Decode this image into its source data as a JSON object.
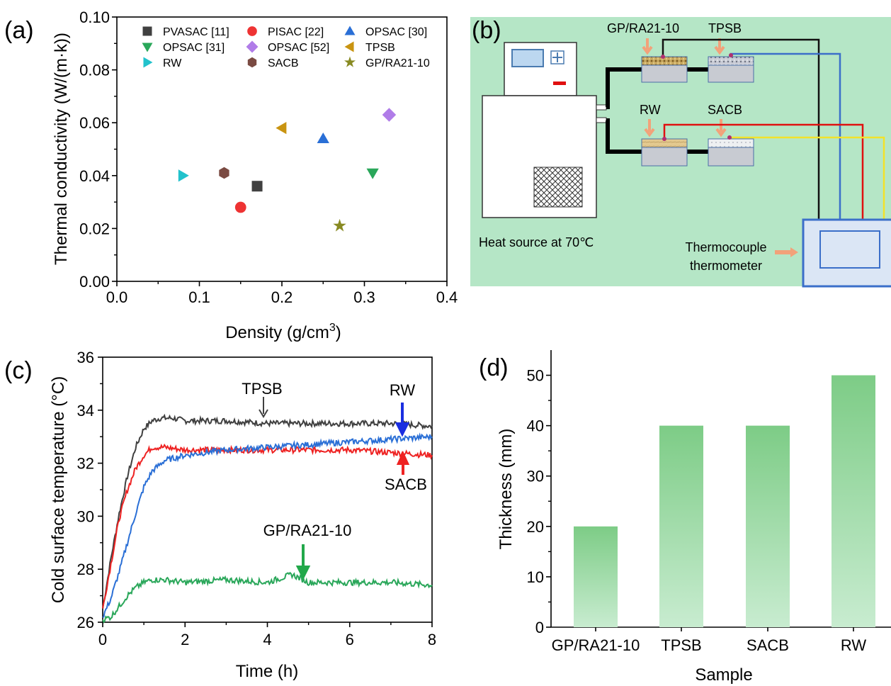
{
  "chart_data": [
    {
      "panel": "(a)",
      "type": "scatter",
      "xlabel": "Density (g/cm3)",
      "xlabel_main": "Density (g/cm",
      "xlabel_sup": "3",
      "xlabel_close": ")",
      "ylabel": "Thermal conductivity (W/(m·k))",
      "xlim": [
        0,
        0.4
      ],
      "ylim": [
        0,
        0.1
      ],
      "xticks": [
        "0.0",
        "0.1",
        "0.2",
        "0.3",
        "0.4"
      ],
      "yticks": [
        "0.00",
        "0.02",
        "0.04",
        "0.06",
        "0.08",
        "0.10"
      ],
      "legend_position": "top",
      "series": [
        {
          "name": "PVASAC [11]",
          "marker": "square",
          "color": "#404040",
          "x": 0.17,
          "y": 0.036
        },
        {
          "name": "PISAC [22]",
          "marker": "circle",
          "color": "#ee3333",
          "x": 0.15,
          "y": 0.028
        },
        {
          "name": "OPSAC [30]",
          "marker": "triangle-up",
          "color": "#2a6fd6",
          "x": 0.25,
          "y": 0.054
        },
        {
          "name": "OPSAC [31]",
          "marker": "triangle-down",
          "color": "#2aa75a",
          "x": 0.31,
          "y": 0.041
        },
        {
          "name": "OPSAC [52]",
          "marker": "diamond",
          "color": "#b07ce8",
          "x": 0.33,
          "y": 0.063
        },
        {
          "name": "TPSB",
          "marker": "triangle-left",
          "color": "#c99411",
          "x": 0.2,
          "y": 0.058
        },
        {
          "name": "RW",
          "marker": "triangle-right",
          "color": "#22c2cc",
          "x": 0.08,
          "y": 0.04
        },
        {
          "name": "SACB",
          "marker": "hexagon",
          "color": "#7a4a42",
          "x": 0.13,
          "y": 0.041
        },
        {
          "name": "GP/RA21-10",
          "marker": "star",
          "color": "#888a22",
          "x": 0.27,
          "y": 0.021
        }
      ]
    },
    {
      "panel": "(c)",
      "type": "line",
      "xlabel": "Time (h)",
      "ylabel": "Cold surface temperature (°C)",
      "xlim": [
        0,
        8
      ],
      "ylim": [
        26,
        36
      ],
      "xticks": [
        "0",
        "2",
        "4",
        "6",
        "8"
      ],
      "yticks": [
        "26",
        "28",
        "30",
        "32",
        "34",
        "36"
      ],
      "series": [
        {
          "name": "TPSB",
          "color": "#404040",
          "x": [
            0,
            0.2,
            0.4,
            0.6,
            0.8,
            1.0,
            1.2,
            1.4,
            1.7,
            2,
            3,
            4,
            5,
            6,
            7,
            8
          ],
          "y": [
            26.5,
            28.4,
            30.1,
            31.5,
            32.6,
            33.3,
            33.6,
            33.7,
            33.7,
            33.6,
            33.6,
            33.5,
            33.5,
            33.5,
            33.5,
            33.4
          ]
        },
        {
          "name": "SACB",
          "color": "#ee2222",
          "x": [
            0,
            0.2,
            0.4,
            0.6,
            0.8,
            1.0,
            1.2,
            1.5,
            2,
            3,
            4,
            5,
            6,
            7,
            8
          ],
          "y": [
            26.5,
            28.2,
            29.9,
            31.0,
            31.8,
            32.3,
            32.6,
            32.6,
            32.5,
            32.5,
            32.5,
            32.5,
            32.5,
            32.4,
            32.3
          ]
        },
        {
          "name": "RW",
          "color": "#2a6fd6",
          "x": [
            0,
            0.2,
            0.4,
            0.6,
            0.8,
            1.0,
            1.2,
            1.5,
            2,
            3,
            4,
            5,
            6,
            7,
            8
          ],
          "y": [
            26.2,
            26.9,
            27.9,
            29.0,
            30.1,
            31.1,
            31.7,
            32.1,
            32.3,
            32.5,
            32.6,
            32.7,
            32.8,
            32.9,
            33.0
          ]
        },
        {
          "name": "GP/RA21-10",
          "color": "#2aa75a",
          "x": [
            0,
            0.2,
            0.4,
            0.6,
            0.8,
            1.0,
            1.2,
            1.5,
            2,
            3,
            4,
            4.6,
            5,
            6,
            7,
            8
          ],
          "y": [
            26.1,
            26.2,
            26.6,
            27.0,
            27.3,
            27.5,
            27.6,
            27.6,
            27.5,
            27.6,
            27.5,
            27.8,
            27.5,
            27.5,
            27.5,
            27.4
          ]
        }
      ],
      "annotations": [
        "TPSB",
        "RW",
        "SACB",
        "GP/RA21-10"
      ]
    },
    {
      "panel": "(d)",
      "type": "bar",
      "xlabel": "Sample",
      "ylabel": "Thickness (mm)",
      "ylim": [
        0,
        55
      ],
      "yticks": [
        "0",
        "10",
        "20",
        "30",
        "40",
        "50"
      ],
      "categories": [
        "GP/RA21-10",
        "TPSB",
        "SACB",
        "RW"
      ],
      "values": [
        20,
        40,
        40,
        50
      ],
      "bar_color": "#7dcc86"
    }
  ],
  "schematic": {
    "panel": "(b)",
    "background": "#b5e6c6",
    "labels": {
      "gp": "GP/RA21-10",
      "tpsb": "TPSB",
      "rw": "RW",
      "sacb": "SACB",
      "heat_source": "Heat source at 70℃",
      "thermo_line1": "Thermocouple",
      "thermo_line2": "thermometer"
    }
  }
}
